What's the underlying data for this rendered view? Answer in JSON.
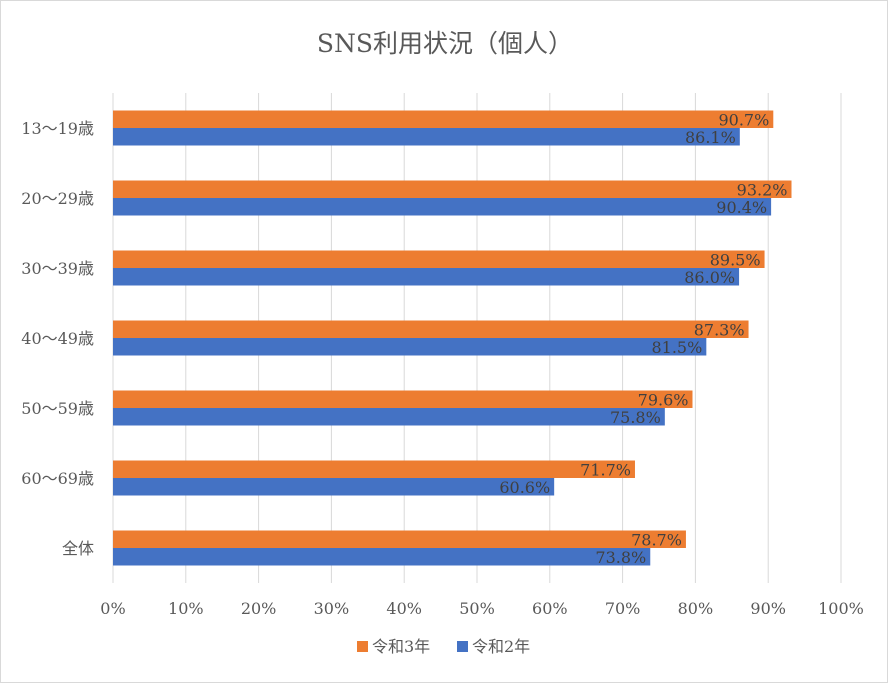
{
  "chart_data": {
    "type": "bar",
    "orientation": "horizontal",
    "title": "SNS利用状況（個人）",
    "categories": [
      "13～19歳",
      "20～29歳",
      "30～39歳",
      "40～49歳",
      "50～59歳",
      "60～69歳",
      "全体"
    ],
    "series": [
      {
        "name": "令和3年",
        "color": "#ED7D31",
        "values": [
          90.7,
          93.2,
          89.5,
          87.3,
          79.6,
          71.7,
          78.7
        ]
      },
      {
        "name": "令和2年",
        "color": "#4472C4",
        "values": [
          86.1,
          90.4,
          86.0,
          81.5,
          75.8,
          60.6,
          73.8
        ]
      }
    ],
    "xlim": [
      0,
      100
    ],
    "x_ticks": [
      "0%",
      "10%",
      "20%",
      "30%",
      "40%",
      "50%",
      "60%",
      "70%",
      "80%",
      "90%",
      "100%"
    ],
    "value_suffix": "%",
    "grid": true,
    "legend_position": "bottom"
  }
}
